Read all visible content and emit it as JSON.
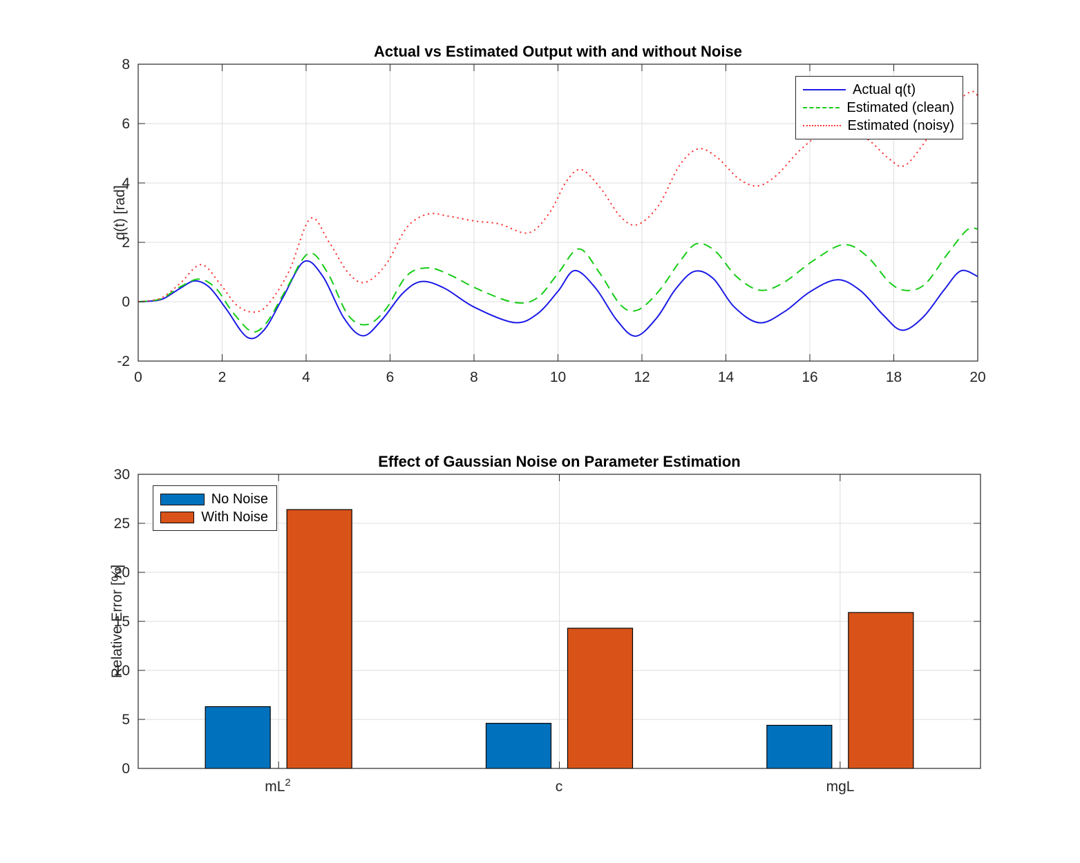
{
  "figure": {
    "background": "#ffffff",
    "axis_color": "#262626",
    "grid_color": "#dcdcdc"
  },
  "chart_data": [
    {
      "type": "line",
      "title": "Actual vs Estimated Output with and without Noise",
      "xlabel": "",
      "ylabel": "q(t) [rad]",
      "xlim": [
        0,
        20
      ],
      "ylim": [
        -2,
        8
      ],
      "xticks": [
        0,
        2,
        4,
        6,
        8,
        10,
        12,
        14,
        16,
        18,
        20
      ],
      "yticks": [
        -2,
        0,
        2,
        4,
        6,
        8
      ],
      "grid": true,
      "legend_position": "northeast",
      "series": [
        {
          "name": "Actual q(t)",
          "color": "#1a1ae6",
          "style": "solid",
          "points": [
            [
              0,
              0
            ],
            [
              0.3,
              0.02
            ],
            [
              0.6,
              0.1
            ],
            [
              1.0,
              0.45
            ],
            [
              1.35,
              0.7
            ],
            [
              1.7,
              0.48
            ],
            [
              2.1,
              -0.25
            ],
            [
              2.6,
              -1.2
            ],
            [
              3.0,
              -0.95
            ],
            [
              3.45,
              0.15
            ],
            [
              3.95,
              1.35
            ],
            [
              4.4,
              0.85
            ],
            [
              4.9,
              -0.55
            ],
            [
              5.35,
              -1.15
            ],
            [
              5.8,
              -0.62
            ],
            [
              6.3,
              0.28
            ],
            [
              6.75,
              0.68
            ],
            [
              7.3,
              0.45
            ],
            [
              8.0,
              -0.18
            ],
            [
              8.95,
              -0.7
            ],
            [
              9.5,
              -0.42
            ],
            [
              10.0,
              0.35
            ],
            [
              10.4,
              1.05
            ],
            [
              10.9,
              0.45
            ],
            [
              11.4,
              -0.62
            ],
            [
              11.85,
              -1.16
            ],
            [
              12.35,
              -0.55
            ],
            [
              12.8,
              0.42
            ],
            [
              13.25,
              1.02
            ],
            [
              13.7,
              0.78
            ],
            [
              14.2,
              -0.18
            ],
            [
              14.8,
              -0.71
            ],
            [
              15.4,
              -0.33
            ],
            [
              16.0,
              0.33
            ],
            [
              16.65,
              0.74
            ],
            [
              17.2,
              0.38
            ],
            [
              17.75,
              -0.45
            ],
            [
              18.2,
              -0.96
            ],
            [
              18.7,
              -0.52
            ],
            [
              19.2,
              0.4
            ],
            [
              19.6,
              1.04
            ],
            [
              20,
              0.85
            ]
          ]
        },
        {
          "name": "Estimated (clean)",
          "color": "#15cc15",
          "style": "dashed",
          "points": [
            [
              0,
              0
            ],
            [
              0.3,
              0.03
            ],
            [
              0.6,
              0.13
            ],
            [
              1.0,
              0.5
            ],
            [
              1.45,
              0.76
            ],
            [
              1.85,
              0.45
            ],
            [
              2.25,
              -0.35
            ],
            [
              2.7,
              -1.0
            ],
            [
              3.05,
              -0.72
            ],
            [
              3.5,
              0.35
            ],
            [
              4.05,
              1.62
            ],
            [
              4.5,
              1.0
            ],
            [
              5.0,
              -0.45
            ],
            [
              5.45,
              -0.77
            ],
            [
              5.9,
              -0.25
            ],
            [
              6.4,
              0.88
            ],
            [
              6.9,
              1.14
            ],
            [
              7.4,
              0.92
            ],
            [
              8.1,
              0.42
            ],
            [
              8.95,
              -0.02
            ],
            [
              9.5,
              0.12
            ],
            [
              10.0,
              0.95
            ],
            [
              10.5,
              1.78
            ],
            [
              11.0,
              0.95
            ],
            [
              11.5,
              -0.12
            ],
            [
              11.9,
              -0.28
            ],
            [
              12.4,
              0.35
            ],
            [
              12.9,
              1.35
            ],
            [
              13.3,
              1.95
            ],
            [
              13.75,
              1.7
            ],
            [
              14.25,
              0.85
            ],
            [
              14.8,
              0.39
            ],
            [
              15.35,
              0.62
            ],
            [
              16.1,
              1.4
            ],
            [
              16.8,
              1.92
            ],
            [
              17.35,
              1.55
            ],
            [
              17.9,
              0.65
            ],
            [
              18.3,
              0.38
            ],
            [
              18.75,
              0.6
            ],
            [
              19.3,
              1.65
            ],
            [
              19.75,
              2.42
            ],
            [
              20,
              2.45
            ]
          ]
        },
        {
          "name": "Estimated (noisy)",
          "color": "#ff3333",
          "style": "dotted",
          "points": [
            [
              0,
              0
            ],
            [
              0.3,
              0.04
            ],
            [
              0.6,
              0.16
            ],
            [
              1.0,
              0.62
            ],
            [
              1.5,
              1.25
            ],
            [
              1.95,
              0.6
            ],
            [
              2.35,
              -0.12
            ],
            [
              2.75,
              -0.35
            ],
            [
              3.1,
              -0.08
            ],
            [
              3.6,
              1.05
            ],
            [
              4.1,
              2.8
            ],
            [
              4.55,
              2.0
            ],
            [
              5.0,
              0.98
            ],
            [
              5.4,
              0.65
            ],
            [
              5.9,
              1.25
            ],
            [
              6.4,
              2.5
            ],
            [
              6.9,
              2.95
            ],
            [
              7.4,
              2.88
            ],
            [
              8.0,
              2.72
            ],
            [
              8.6,
              2.62
            ],
            [
              9.3,
              2.32
            ],
            [
              9.8,
              3.0
            ],
            [
              10.2,
              4.05
            ],
            [
              10.55,
              4.45
            ],
            [
              11.0,
              3.85
            ],
            [
              11.5,
              2.85
            ],
            [
              11.9,
              2.6
            ],
            [
              12.4,
              3.25
            ],
            [
              12.9,
              4.6
            ],
            [
              13.35,
              5.15
            ],
            [
              13.8,
              4.85
            ],
            [
              14.3,
              4.15
            ],
            [
              14.75,
              3.9
            ],
            [
              15.2,
              4.25
            ],
            [
              15.8,
              5.15
            ],
            [
              16.4,
              5.78
            ],
            [
              16.9,
              5.85
            ],
            [
              17.4,
              5.45
            ],
            [
              17.9,
              4.8
            ],
            [
              18.25,
              4.58
            ],
            [
              18.7,
              5.3
            ],
            [
              19.2,
              6.35
            ],
            [
              19.8,
              7.05
            ],
            [
              20,
              6.95
            ]
          ]
        }
      ]
    },
    {
      "type": "bar",
      "title": "Effect of Gaussian Noise on Parameter Estimation",
      "xlabel": "",
      "ylabel": "Relative Error [%]",
      "ylim": [
        0,
        30
      ],
      "yticks": [
        0,
        5,
        10,
        15,
        20,
        25,
        30
      ],
      "grid": true,
      "legend_position": "northwest",
      "categories": [
        {
          "base": "mL",
          "sup": "2"
        },
        {
          "base": "c",
          "sup": ""
        },
        {
          "base": "mgL",
          "sup": ""
        }
      ],
      "series": [
        {
          "name": "No Noise",
          "color": "#0072BD",
          "values": [
            6.3,
            4.6,
            4.4
          ]
        },
        {
          "name": "With Noise",
          "color": "#D95319",
          "values": [
            26.4,
            14.3,
            15.9
          ]
        }
      ]
    }
  ]
}
